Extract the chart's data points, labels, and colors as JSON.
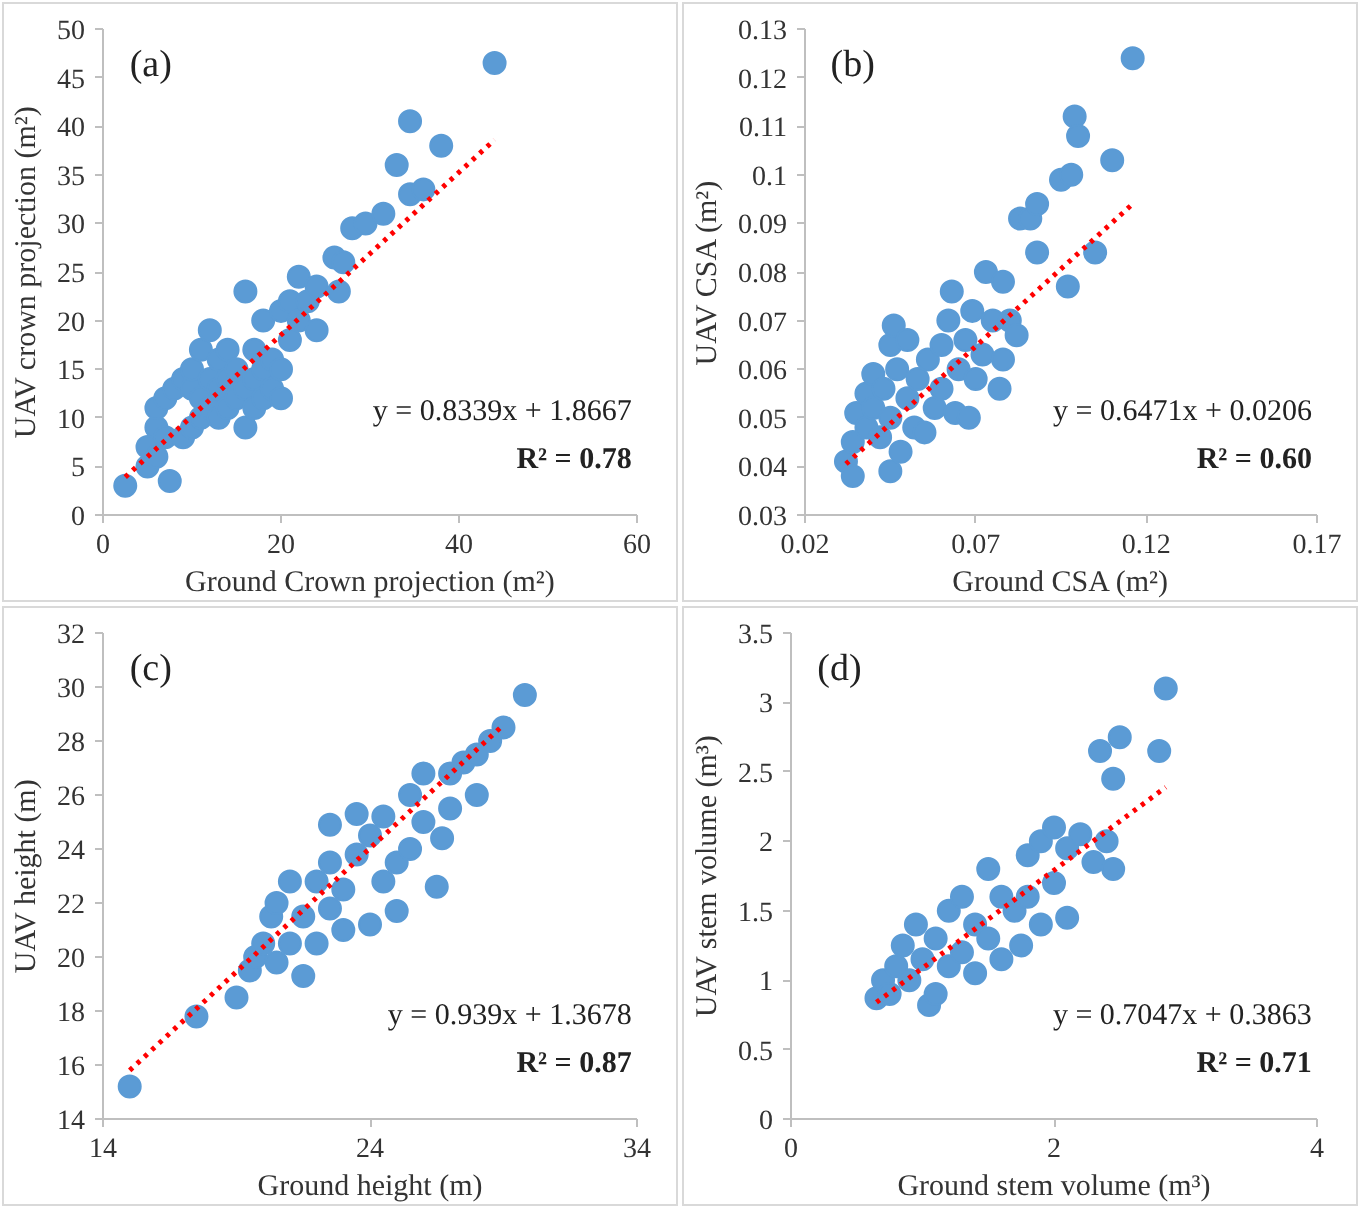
{
  "chart_data": [
    {
      "type": "scatter",
      "xlabel": "Ground Crown projection (m²)",
      "ylabel": "UAV crown projection (m²)",
      "xlim": [
        0,
        60
      ],
      "ylim": [
        0,
        50
      ],
      "xticks": [
        0,
        20,
        40,
        60
      ],
      "yticks": [
        0,
        5,
        10,
        15,
        20,
        25,
        30,
        35,
        40,
        45,
        50
      ],
      "grid": false,
      "annotations": [
        "(a)",
        "y = 0.8339x + 1.8667",
        "R² = 0.78"
      ],
      "series": [
        {
          "marker": "circle",
          "color": "#5b9bd5",
          "x": [
            2.5,
            7.5,
            5,
            5,
            6,
            6,
            6,
            7,
            7,
            8,
            9,
            9,
            10,
            10,
            10,
            11,
            11,
            11,
            12,
            12,
            12,
            13,
            13,
            13,
            14,
            14,
            14,
            15,
            15,
            16,
            16,
            16,
            17,
            17,
            17,
            18,
            18,
            18,
            19,
            19,
            20,
            20,
            20,
            21,
            21,
            22,
            22,
            23,
            24,
            24,
            26,
            26.5,
            27,
            28,
            29.5,
            31.5,
            33,
            34.5,
            34.5,
            36,
            38,
            44
          ],
          "values": [
            3,
            3.5,
            5,
            7,
            6,
            9,
            11,
            8,
            12,
            13,
            8,
            14,
            9,
            13,
            15,
            10,
            12,
            17,
            19,
            11,
            14,
            10,
            13,
            16,
            11,
            14,
            17,
            12,
            15,
            9,
            23,
            13,
            11,
            14,
            17,
            12,
            15,
            20,
            13,
            16,
            12,
            15,
            21,
            18,
            22,
            20,
            24.5,
            22,
            19,
            23.5,
            26.5,
            23,
            26,
            29.5,
            30,
            31,
            36,
            40.5,
            33,
            33.5,
            38,
            46.5
          ]
        },
        {
          "type": "line",
          "color": "#ff0000",
          "line_style": "dotted",
          "x": [
            2.5,
            44
          ],
          "values": [
            3.9,
            38.6
          ]
        }
      ]
    },
    {
      "type": "scatter",
      "xlabel": "Ground CSA (m²)",
      "ylabel": "UAV CSA (m²)",
      "xlim": [
        0.02,
        0.17
      ],
      "ylim": [
        0.03,
        0.13
      ],
      "xticks": [
        0.02,
        0.07,
        0.12,
        0.17
      ],
      "yticks": [
        0.03,
        0.04,
        0.05,
        0.06,
        0.07,
        0.08,
        0.09,
        0.1,
        0.11,
        0.12,
        0.13
      ],
      "grid": false,
      "annotations": [
        "(b)",
        "y = 0.6471x + 0.0206",
        "R² = 0.60"
      ],
      "series": [
        {
          "marker": "circle",
          "color": "#5b9bd5",
          "x": [
            0.032,
            0.034,
            0.034,
            0.035,
            0.038,
            0.038,
            0.04,
            0.04,
            0.042,
            0.043,
            0.045,
            0.045,
            0.045,
            0.046,
            0.047,
            0.048,
            0.05,
            0.05,
            0.052,
            0.053,
            0.055,
            0.056,
            0.058,
            0.06,
            0.06,
            0.062,
            0.063,
            0.064,
            0.065,
            0.067,
            0.068,
            0.069,
            0.07,
            0.072,
            0.073,
            0.075,
            0.077,
            0.078,
            0.078,
            0.08,
            0.082,
            0.083,
            0.086,
            0.088,
            0.088,
            0.095,
            0.097,
            0.098,
            0.099,
            0.1,
            0.105,
            0.11,
            0.116
          ],
          "values": [
            0.041,
            0.038,
            0.045,
            0.051,
            0.048,
            0.055,
            0.059,
            0.052,
            0.046,
            0.056,
            0.039,
            0.05,
            0.065,
            0.069,
            0.06,
            0.043,
            0.054,
            0.066,
            0.048,
            0.058,
            0.047,
            0.062,
            0.052,
            0.056,
            0.065,
            0.07,
            0.076,
            0.051,
            0.06,
            0.066,
            0.05,
            0.072,
            0.058,
            0.063,
            0.08,
            0.07,
            0.056,
            0.062,
            0.078,
            0.07,
            0.067,
            0.091,
            0.091,
            0.094,
            0.084,
            0.099,
            0.077,
            0.1,
            0.112,
            0.108,
            0.084,
            0.103,
            0.124
          ]
        },
        {
          "type": "line",
          "color": "#ff0000",
          "line_style": "dotted",
          "x": [
            0.032,
            0.116
          ],
          "values": [
            0.0405,
            0.094
          ]
        }
      ]
    },
    {
      "type": "scatter",
      "xlabel": "Ground height (m)",
      "ylabel": "UAV height (m)",
      "xlim": [
        14,
        34
      ],
      "ylim": [
        14,
        32
      ],
      "xticks": [
        14,
        24,
        34
      ],
      "yticks": [
        14,
        16,
        18,
        20,
        22,
        24,
        26,
        28,
        30,
        32
      ],
      "grid": false,
      "annotations": [
        "(c)",
        "y = 0.939x + 1.3678",
        "R² = 0.87"
      ],
      "series": [
        {
          "marker": "circle",
          "color": "#5b9bd5",
          "x": [
            15,
            17.5,
            19,
            19.5,
            19.7,
            20,
            20.3,
            20.5,
            20.5,
            21,
            21,
            21.5,
            21.5,
            22,
            22,
            22.5,
            22.5,
            22.5,
            23,
            23,
            23.5,
            23.5,
            24,
            24,
            24.5,
            24.5,
            25,
            25,
            25.5,
            25.5,
            26,
            26,
            26.5,
            26.7,
            27,
            27,
            27.5,
            28,
            28,
            28.5,
            29,
            29.8
          ],
          "values": [
            15.2,
            17.8,
            18.5,
            19.5,
            20,
            20.5,
            21.5,
            22,
            19.8,
            20.5,
            22.8,
            19.3,
            21.5,
            22.8,
            20.5,
            21.8,
            23.5,
            24.9,
            21,
            22.5,
            25.3,
            23.8,
            21.2,
            24.5,
            22.8,
            25.2,
            21.7,
            23.5,
            24,
            26,
            26.8,
            25,
            22.6,
            24.4,
            26.8,
            25.5,
            27.2,
            26,
            27.5,
            28,
            28.5,
            29.7
          ]
        },
        {
          "type": "line",
          "color": "#ff0000",
          "line_style": "dotted",
          "x": [
            15,
            29
          ],
          "values": [
            15.8,
            28.6
          ]
        }
      ]
    },
    {
      "type": "scatter",
      "xlabel": "Ground stem volume (m³)",
      "ylabel": "UAV stem volume (m³)",
      "xlim": [
        0,
        4
      ],
      "ylim": [
        0,
        3.5
      ],
      "xticks": [
        0,
        2,
        4
      ],
      "yticks": [
        0,
        0.5,
        1,
        1.5,
        2,
        2.5,
        3,
        3.5
      ],
      "grid": false,
      "annotations": [
        "(d)",
        "y = 0.7047x + 0.3863",
        "R² = 0.71"
      ],
      "series": [
        {
          "marker": "circle",
          "color": "#5b9bd5",
          "x": [
            0.65,
            0.7,
            0.75,
            0.8,
            0.85,
            0.9,
            0.95,
            1.0,
            1.05,
            1.1,
            1.1,
            1.2,
            1.2,
            1.3,
            1.3,
            1.4,
            1.4,
            1.5,
            1.5,
            1.6,
            1.6,
            1.7,
            1.75,
            1.8,
            1.8,
            1.9,
            1.9,
            2.0,
            2.0,
            2.1,
            2.1,
            2.2,
            2.3,
            2.35,
            2.4,
            2.45,
            2.45,
            2.5,
            2.8,
            2.85
          ],
          "values": [
            0.87,
            1.0,
            0.9,
            1.1,
            1.25,
            1.0,
            1.4,
            1.15,
            0.82,
            1.3,
            0.9,
            1.5,
            1.1,
            1.6,
            1.2,
            1.4,
            1.05,
            1.8,
            1.3,
            1.6,
            1.15,
            1.5,
            1.25,
            1.9,
            1.6,
            2.0,
            1.4,
            2.1,
            1.7,
            1.45,
            1.95,
            2.05,
            1.85,
            2.65,
            2.0,
            2.45,
            1.8,
            2.75,
            2.65,
            3.1
          ]
        },
        {
          "type": "line",
          "color": "#ff0000",
          "line_style": "dotted",
          "x": [
            0.65,
            2.85
          ],
          "values": [
            0.84,
            2.39
          ]
        }
      ]
    }
  ]
}
